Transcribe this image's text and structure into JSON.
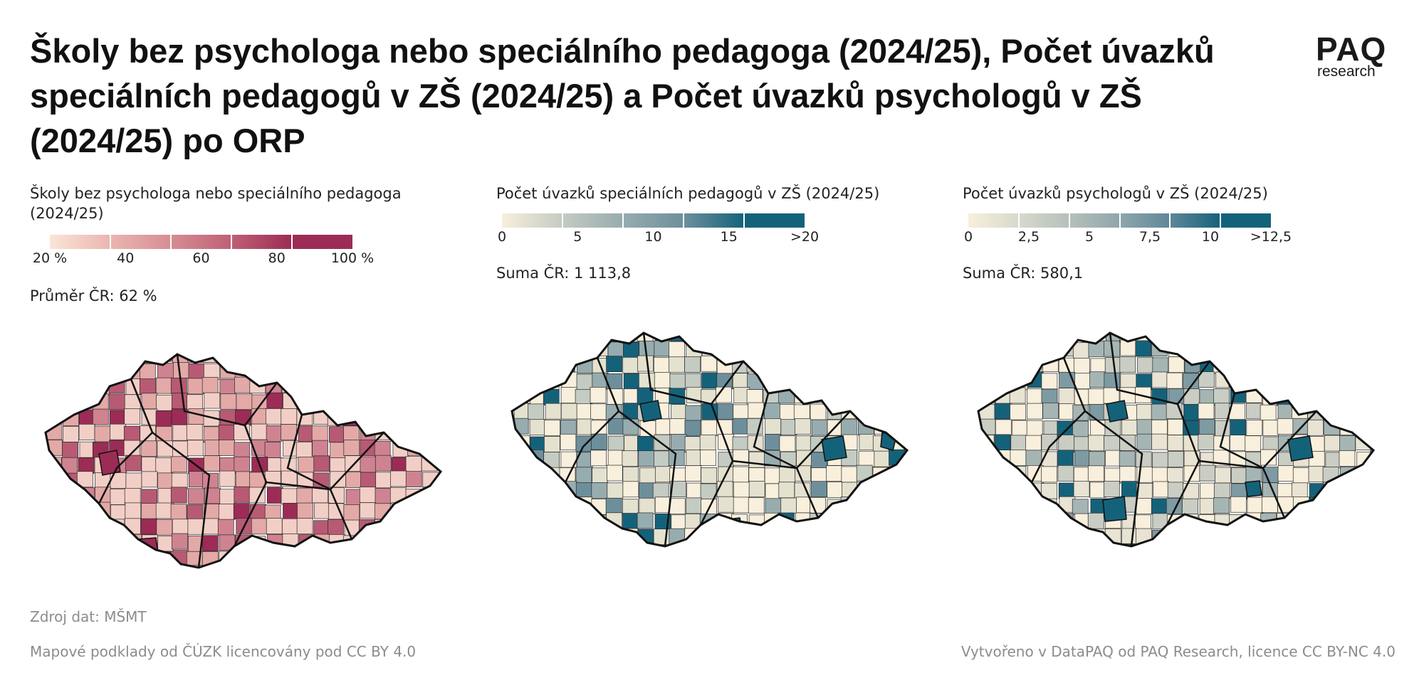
{
  "title": "Školy bez psychologa nebo speciálního pedagoga (2024/25), Počet úvazků speciálních pedagogů v ZŠ (2024/25) a Počet úvazků psychologů v ZŠ (2024/25) po ORP",
  "logo": {
    "name": "PAQ",
    "sub": "research"
  },
  "panels": [
    {
      "legend_title": "Školy bez psychologa nebo speciálního pedagoga (2024/25)",
      "legend_labels": [
        "20 %",
        "40",
        "60",
        "80",
        "100 %"
      ],
      "legend_colors": [
        "#fbe4d6",
        "#eab6b0",
        "#d78d93",
        "#be6076",
        "#9c2c55"
      ],
      "stat": "Průměr ČR: 62 %",
      "map_color_mid": "#c57083"
    },
    {
      "legend_title": "Počet úvazků speciálních pedagogů v ZŠ (2024/25)",
      "legend_labels": [
        "0",
        "5",
        "10",
        "15",
        ">20"
      ],
      "legend_colors": [
        "#f8efdc",
        "#c4cbc2",
        "#97acaf",
        "#6d8f9c",
        "#14627a"
      ],
      "stat": "Suma ČR: 1 113,8"
    },
    {
      "legend_title": "Počet úvazků psychologů v ZŠ (2024/25)",
      "legend_labels": [
        "0",
        "2,5",
        "5",
        "7,5",
        "10",
        ">12,5"
      ],
      "legend_colors": [
        "#f8efdc",
        "#d7d9cc",
        "#b6c0bb",
        "#8fa6ab",
        "#60879a",
        "#14627a"
      ],
      "stat": "Suma ČR: 580,1"
    }
  ],
  "footer": {
    "source": "Zdroj dat: MŠMT",
    "basemap": "Mapové podklady od ČÚZK licencovány pod CC BY 4.0",
    "credit": "Vytvořeno v DataPAQ od PAQ Research, licence CC BY-NC 4.0"
  }
}
